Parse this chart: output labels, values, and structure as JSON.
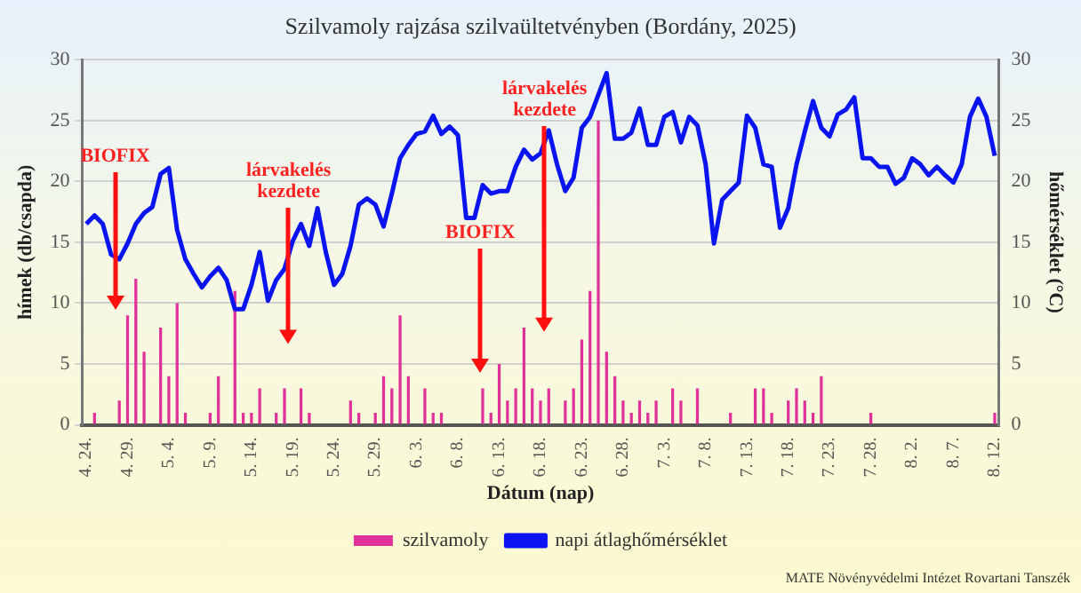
{
  "chart_data": {
    "type": "bar",
    "title": "Szilvamoly rajzása szilvaültetvényben (Bordány, 2025)",
    "xlabel": "Dátum (nap)",
    "ylabel": "hímek (db/csapda)",
    "y2label": "hőmérséklet (°C)",
    "categories": [
      "4. 24.",
      null,
      null,
      null,
      null,
      "4. 29.",
      null,
      null,
      null,
      null,
      "5. 4.",
      null,
      null,
      null,
      null,
      "5. 9.",
      null,
      null,
      null,
      null,
      "5. 14.",
      null,
      null,
      null,
      null,
      "5. 19.",
      null,
      null,
      null,
      null,
      "5. 24.",
      null,
      null,
      null,
      null,
      "5. 29.",
      null,
      null,
      null,
      null,
      "6. 3.",
      null,
      null,
      null,
      null,
      "6. 8.",
      null,
      null,
      null,
      null,
      "6. 13.",
      null,
      null,
      null,
      null,
      "6. 18.",
      null,
      null,
      null,
      null,
      "6. 23.",
      null,
      null,
      null,
      null,
      "6. 28.",
      null,
      null,
      null,
      null,
      "7. 3.",
      null,
      null,
      null,
      null,
      "7. 8.",
      null,
      null,
      null,
      null,
      "7. 13.",
      null,
      null,
      null,
      null,
      "7. 18.",
      null,
      null,
      null,
      null,
      "7. 23.",
      null,
      null,
      null,
      null,
      "7. 28.",
      null,
      null,
      null,
      null,
      "8. 2.",
      null,
      null,
      null,
      null,
      "8. 7.",
      null,
      null,
      null,
      null,
      "8. 12."
    ],
    "series": [
      {
        "name": "szilvamoly",
        "color": "#e0309a",
        "values": [
          0,
          1,
          0,
          0,
          2,
          9,
          12,
          6,
          0,
          8,
          4,
          10,
          1,
          0,
          0,
          1,
          4,
          0,
          11,
          1,
          1,
          3,
          0,
          1,
          3,
          0,
          3,
          1,
          0,
          0,
          0,
          0,
          2,
          1,
          0,
          1,
          4,
          3,
          9,
          4,
          0,
          3,
          1,
          1,
          0,
          0,
          0,
          0,
          3,
          1,
          5,
          2,
          3,
          8,
          3,
          2,
          3,
          0,
          2,
          3,
          7,
          11,
          25,
          6,
          4,
          2,
          1,
          2,
          1,
          2,
          0,
          3,
          2,
          0,
          3,
          0,
          0,
          0,
          1,
          0,
          0,
          3,
          3,
          1,
          0,
          2,
          3,
          2,
          1,
          4,
          0,
          0,
          0,
          0,
          0,
          1,
          0,
          0,
          0,
          0,
          0,
          0,
          0,
          0,
          0,
          0,
          0,
          0,
          0,
          0,
          1
        ]
      },
      {
        "name": "napi átlaghőmérséklet",
        "type": "line",
        "axis": "y2",
        "color": "#0a14f0",
        "marker": "none",
        "line_style": "solid",
        "values": [
          16.5,
          17.2,
          16.5,
          14.0,
          13.6,
          14.9,
          16.5,
          17.4,
          17.9,
          20.6,
          21.1,
          16.0,
          13.6,
          12.4,
          11.3,
          12.2,
          12.9,
          11.9,
          9.5,
          9.5,
          11.5,
          14.2,
          10.2,
          11.9,
          12.8,
          15.1,
          16.5,
          14.7,
          17.8,
          14.2,
          11.5,
          12.4,
          14.7,
          18.1,
          18.6,
          18.1,
          16.3,
          19.0,
          21.9,
          23.0,
          23.9,
          24.1,
          25.4,
          23.9,
          24.5,
          23.8,
          17.0,
          17.0,
          19.7,
          19.0,
          19.2,
          19.2,
          21.2,
          22.6,
          21.8,
          22.3,
          24.2,
          21.4,
          19.2,
          20.3,
          24.4,
          25.3,
          27.1,
          28.9,
          23.5,
          23.5,
          24.0,
          26.0,
          23.0,
          23.0,
          25.3,
          25.7,
          23.2,
          25.3,
          24.6,
          21.4,
          14.9,
          18.5,
          19.2,
          19.9,
          25.4,
          24.4,
          21.4,
          21.2,
          16.2,
          17.8,
          21.4,
          24.1,
          26.6,
          24.4,
          23.7,
          25.5,
          25.9,
          26.9,
          21.9,
          21.9,
          21.2,
          21.2,
          19.8,
          20.3,
          21.9,
          21.4,
          20.5,
          21.2,
          20.5,
          19.9,
          21.4,
          25.3,
          26.8,
          25.3,
          22.1
        ]
      }
    ],
    "ylim": [
      0,
      30
    ],
    "yticks": [
      0,
      5,
      10,
      15,
      20,
      25,
      30
    ],
    "y2lim": [
      0,
      30
    ],
    "y2ticks": [
      0,
      5,
      10,
      15,
      20,
      25,
      30
    ],
    "grid": "y",
    "legend": "bottom",
    "annotations": [
      "BIOFIX",
      "lárvakelés kezdete",
      "BIOFIX",
      "lárvakelés kezdete",
      "MATE Növényvédelmi Intézet Rovartani Tanszék"
    ]
  }
}
